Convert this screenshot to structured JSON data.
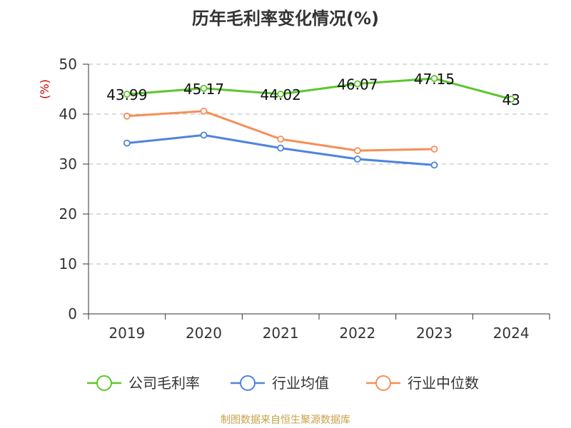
{
  "title": "历年毛利率变化情况(%)",
  "source": "制图数据来自恒生聚源数据库",
  "chart_data": {
    "type": "line",
    "title": "历年毛利率变化情况(%)",
    "ylabel": "(%)",
    "xlabel": "",
    "categories": [
      "2019",
      "2020",
      "2021",
      "2022",
      "2023",
      "2024"
    ],
    "ylim": [
      0,
      50
    ],
    "yticks": [
      "0",
      "10",
      "20",
      "30",
      "40",
      "50"
    ],
    "grid": true,
    "legend_position": "bottom",
    "series": [
      {
        "name": "公司毛利率",
        "color": "#5bc72b",
        "values": [
          43.99,
          45.17,
          44.02,
          46.07,
          47.15,
          43
        ],
        "labels": [
          "43.99",
          "45.17",
          "44.02",
          "46.07",
          "47.15",
          "43"
        ]
      },
      {
        "name": "行业均值",
        "color": "#4f84dd",
        "values": [
          34.2,
          35.8,
          33.2,
          31.0,
          29.8,
          null
        ]
      },
      {
        "name": "行业中位数",
        "color": "#f58f57",
        "values": [
          39.6,
          40.6,
          35.0,
          32.7,
          33.0,
          null
        ]
      }
    ]
  }
}
